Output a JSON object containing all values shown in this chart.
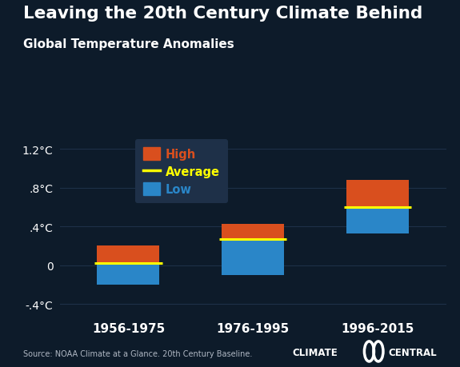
{
  "title": "Leaving the 20th Century Climate Behind",
  "subtitle": "Global Temperature Anomalies",
  "categories": [
    "1956-1975",
    "1976-1995",
    "1996-2015"
  ],
  "low": [
    -0.2,
    -0.1,
    0.33
  ],
  "high": [
    0.2,
    0.43,
    0.88
  ],
  "average": [
    0.02,
    0.27,
    0.6
  ],
  "bar_color_high": "#d94f1e",
  "bar_color_low": "#2a86c8",
  "avg_line_color": "#ffff00",
  "bg_color": "#0d1b2a",
  "grid_color": "#1e3048",
  "text_color": "#ffffff",
  "ylim": [
    -0.52,
    1.38
  ],
  "yticks": [
    -0.4,
    0.0,
    0.4,
    0.8,
    1.2
  ],
  "ytick_labels": [
    "-.4°C",
    "0",
    ".4°C",
    ".8°C",
    "1.2°C"
  ],
  "source_text": "Source: NOAA Climate at a Glance. 20th Century Baseline.",
  "legend_bg": "#1e3048",
  "legend_label_high": "High",
  "legend_label_avg": "Average",
  "legend_label_low": "Low"
}
